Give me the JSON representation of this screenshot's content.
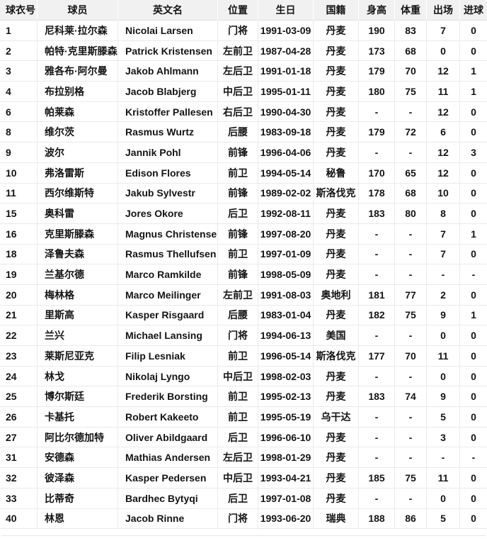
{
  "table": {
    "columns": [
      {
        "key": "number",
        "label": "球衣号"
      },
      {
        "key": "player",
        "label": "球员"
      },
      {
        "key": "english_name",
        "label": "英文名"
      },
      {
        "key": "position",
        "label": "位置"
      },
      {
        "key": "birthday",
        "label": "生日"
      },
      {
        "key": "nationality",
        "label": "国籍"
      },
      {
        "key": "height",
        "label": "身高"
      },
      {
        "key": "weight",
        "label": "体重"
      },
      {
        "key": "appearances",
        "label": "出场"
      },
      {
        "key": "goals",
        "label": "进球"
      }
    ],
    "rows": [
      [
        "1",
        "尼科莱·拉尔森",
        "Nicolai Larsen",
        "门将",
        "1991-03-09",
        "丹麦",
        "190",
        "83",
        "7",
        "0"
      ],
      [
        "2",
        "帕特·克里斯滕森",
        "Patrick Kristensen",
        "左前卫",
        "1987-04-28",
        "丹麦",
        "173",
        "68",
        "0",
        "0"
      ],
      [
        "3",
        "雅各布·阿尔曼",
        "Jakob Ahlmann",
        "左后卫",
        "1991-01-18",
        "丹麦",
        "179",
        "70",
        "12",
        "1"
      ],
      [
        "4",
        "布拉别格",
        "Jacob Blabjerg",
        "中后卫",
        "1995-01-11",
        "丹麦",
        "180",
        "75",
        "11",
        "1"
      ],
      [
        "6",
        "帕莱森",
        "Kristoffer Pallesen",
        "右后卫",
        "1990-04-30",
        "丹麦",
        "-",
        "-",
        "12",
        "0"
      ],
      [
        "8",
        "维尔茨",
        "Rasmus Wurtz",
        "后腰",
        "1983-09-18",
        "丹麦",
        "179",
        "72",
        "6",
        "0"
      ],
      [
        "9",
        "波尔",
        "Jannik Pohl",
        "前锋",
        "1996-04-06",
        "丹麦",
        "-",
        "-",
        "12",
        "3"
      ],
      [
        "10",
        "弗洛雷斯",
        "Edison Flores",
        "前卫",
        "1994-05-14",
        "秘鲁",
        "170",
        "65",
        "12",
        "0"
      ],
      [
        "11",
        "西尔维斯特",
        "Jakub Sylvestr",
        "前锋",
        "1989-02-02",
        "斯洛伐克",
        "178",
        "68",
        "10",
        "0"
      ],
      [
        "15",
        "奥科雷",
        "Jores Okore",
        "后卫",
        "1992-08-11",
        "丹麦",
        "183",
        "80",
        "8",
        "0"
      ],
      [
        "16",
        "克里斯滕森",
        "Magnus Christensen",
        "前锋",
        "1997-08-20",
        "丹麦",
        "-",
        "-",
        "7",
        "1"
      ],
      [
        "18",
        "泽鲁夫森",
        "Rasmus Thellufsen",
        "前卫",
        "1997-01-09",
        "丹麦",
        "-",
        "-",
        "7",
        "0"
      ],
      [
        "19",
        "兰基尔德",
        "Marco Ramkilde",
        "前锋",
        "1998-05-09",
        "丹麦",
        "-",
        "-",
        "-",
        "-"
      ],
      [
        "20",
        "梅林格",
        "Marco Meilinger",
        "左前卫",
        "1991-08-03",
        "奥地利",
        "181",
        "77",
        "2",
        "0"
      ],
      [
        "21",
        "里斯高",
        "Kasper Risgaard",
        "后腰",
        "1983-01-04",
        "丹麦",
        "182",
        "75",
        "9",
        "1"
      ],
      [
        "22",
        "兰兴",
        "Michael Lansing",
        "门将",
        "1994-06-13",
        "美国",
        "-",
        "-",
        "0",
        "0"
      ],
      [
        "23",
        "莱斯尼亚克",
        "Filip Lesniak",
        "前卫",
        "1996-05-14",
        "斯洛伐克",
        "177",
        "70",
        "11",
        "0"
      ],
      [
        "24",
        "林戈",
        "Nikolaj Lyngo",
        "中后卫",
        "1998-02-03",
        "丹麦",
        "-",
        "-",
        "0",
        "0"
      ],
      [
        "25",
        "博尔斯廷",
        "Frederik Borsting",
        "前卫",
        "1995-02-13",
        "丹麦",
        "183",
        "74",
        "9",
        "0"
      ],
      [
        "26",
        "卡基托",
        "Robert Kakeeto",
        "前卫",
        "1995-05-19",
        "乌干达",
        "-",
        "-",
        "5",
        "0"
      ],
      [
        "27",
        "阿比尔德加特",
        "Oliver Abildgaard",
        "后卫",
        "1996-06-10",
        "丹麦",
        "-",
        "-",
        "3",
        "0"
      ],
      [
        "31",
        "安德森",
        "Mathias Andersen",
        "左后卫",
        "1998-01-29",
        "丹麦",
        "-",
        "-",
        "-",
        "-"
      ],
      [
        "32",
        "彼泽森",
        "Kasper Pedersen",
        "中后卫",
        "1993-04-21",
        "丹麦",
        "185",
        "75",
        "11",
        "0"
      ],
      [
        "33",
        "比蒂奇",
        "Bardhec Bytyqi",
        "后卫",
        "1997-01-08",
        "丹麦",
        "-",
        "-",
        "0",
        "0"
      ],
      [
        "40",
        "林恩",
        "Jacob Rinne",
        "门将",
        "1993-06-20",
        "瑞典",
        "188",
        "86",
        "5",
        "0"
      ]
    ]
  }
}
